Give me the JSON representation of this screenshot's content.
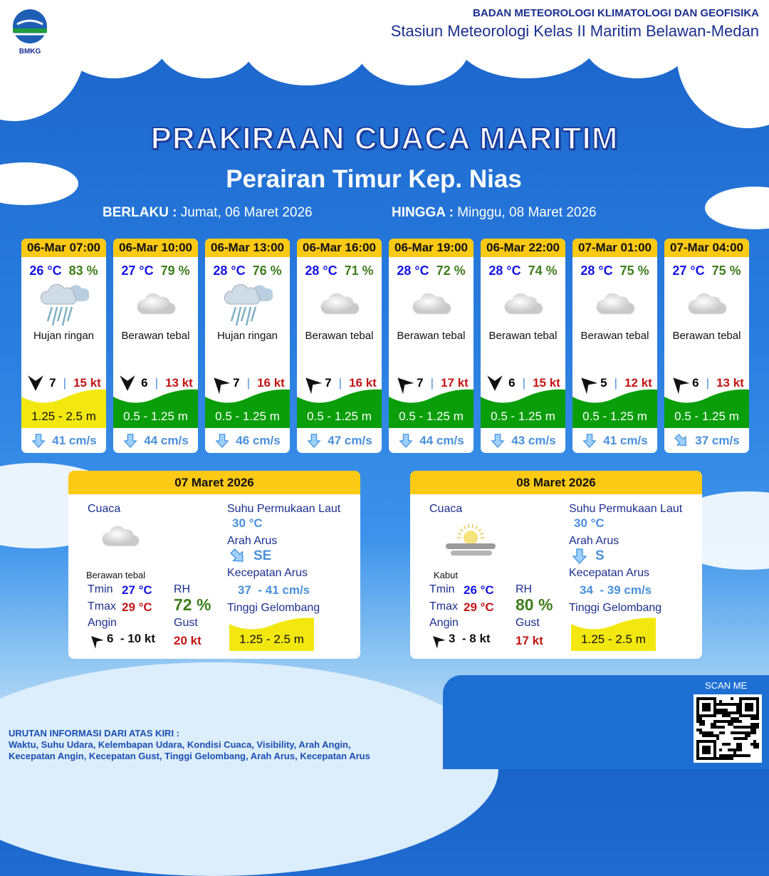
{
  "header": {
    "org": "BADAN METEOROLOGI KLIMATOLOGI DAN GEOFISIKA",
    "station": "Stasiun Meteorologi Kelas II Maritim Belawan-Medan",
    "logo_text": "BMKG"
  },
  "title": "PRAKIRAAN CUACA MARITIM",
  "subtitle": "Perairan Timur Kep. Nias",
  "validity": {
    "from_label": "BERLAKU :",
    "from": "Jumat, 06 Maret 2026",
    "to_label": "HINGGA :",
    "to": "Minggu, 08 Maret 2026"
  },
  "colors": {
    "yellow_wave": "#f2e80f",
    "green_wave": "#0a9e0a",
    "header": "#fcc914"
  },
  "forecasts": [
    {
      "time": "06-Mar 07:00",
      "temp": "26 °C",
      "rh": "83 %",
      "icon": "rain-cloud-icon",
      "cond": "Hujan ringan",
      "wind_dir": "N",
      "wind": "7",
      "gust": "15 kt",
      "wave": "1.25 - 2.5 m",
      "wave_level": "yellow",
      "cur_dir": "S",
      "cur": "41 cm/s"
    },
    {
      "time": "06-Mar 10:00",
      "temp": "27 °C",
      "rh": "79 %",
      "icon": "cloud-icon",
      "cond": "Berawan tebal",
      "wind_dir": "N",
      "wind": "6",
      "gust": "13 kt",
      "wave": "0.5 - 1.25 m",
      "wave_level": "green",
      "cur_dir": "S",
      "cur": "44 cm/s"
    },
    {
      "time": "06-Mar 13:00",
      "temp": "28 °C",
      "rh": "76 %",
      "icon": "rain-cloud-icon",
      "cond": "Hujan ringan",
      "wind_dir": "SW",
      "wind": "7",
      "gust": "16 kt",
      "wave": "0.5 - 1.25 m",
      "wave_level": "green",
      "cur_dir": "S",
      "cur": "46 cm/s"
    },
    {
      "time": "06-Mar 16:00",
      "temp": "28 °C",
      "rh": "71 %",
      "icon": "cloud-icon",
      "cond": "Berawan tebal",
      "wind_dir": "SW",
      "wind": "7",
      "gust": "16 kt",
      "wave": "0.5 - 1.25 m",
      "wave_level": "green",
      "cur_dir": "S",
      "cur": "47 cm/s"
    },
    {
      "time": "06-Mar 19:00",
      "temp": "28 °C",
      "rh": "72 %",
      "icon": "cloud-icon",
      "cond": "Berawan tebal",
      "wind_dir": "SW",
      "wind": "7",
      "gust": "17 kt",
      "wave": "0.5 - 1.25 m",
      "wave_level": "green",
      "cur_dir": "S",
      "cur": "44 cm/s"
    },
    {
      "time": "06-Mar 22:00",
      "temp": "28 °C",
      "rh": "74 %",
      "icon": "cloud-icon",
      "cond": "Berawan tebal",
      "wind_dir": "N",
      "wind": "6",
      "gust": "15 kt",
      "wave": "0.5 - 1.25 m",
      "wave_level": "green",
      "cur_dir": "S",
      "cur": "43 cm/s"
    },
    {
      "time": "07-Mar 01:00",
      "temp": "28 °C",
      "rh": "75 %",
      "icon": "cloud-icon",
      "cond": "Berawan tebal",
      "wind_dir": "SW",
      "wind": "5",
      "gust": "12 kt",
      "wave": "0.5 - 1.25 m",
      "wave_level": "green",
      "cur_dir": "S",
      "cur": "41 cm/s"
    },
    {
      "time": "07-Mar 04:00",
      "temp": "27 °C",
      "rh": "75 %",
      "icon": "cloud-icon",
      "cond": "Berawan tebal",
      "wind_dir": "SW",
      "wind": "6",
      "gust": "13 kt",
      "wave": "0.5 - 1.25 m",
      "wave_level": "green",
      "cur_dir": "SE",
      "cur": "37 cm/s"
    }
  ],
  "daily": [
    {
      "date": "07 Maret 2026",
      "cuaca_label": "Cuaca",
      "icon": "cloud-icon",
      "cond": "Berawan tebal",
      "tmin_label": "Tmin",
      "tmin": "27 °C",
      "tmax_label": "Tmax",
      "tmax": "29 °C",
      "rh_label": "RH",
      "rh": "72 %",
      "angin_label": "Angin",
      "angin": "6  - 10 kt",
      "gust_label": "Gust",
      "gust": "20 kt",
      "sst_label": "Suhu Permukaan Laut",
      "sst": "30 °C",
      "arah_label": "Arah Arus",
      "arah": "SE",
      "kec_label": "Kecepatan Arus",
      "kec": "37  - 41 cm/s",
      "tg_label": "Tinggi Gelombang",
      "tg": "1.25 - 2.5 m"
    },
    {
      "date": "08 Maret 2026",
      "cuaca_label": "Cuaca",
      "icon": "fog-icon",
      "cond": "Kabut",
      "tmin_label": "Tmin",
      "tmin": "26 °C",
      "tmax_label": "Tmax",
      "tmax": "29 °C",
      "rh_label": "RH",
      "rh": "80 %",
      "angin_label": "Angin",
      "angin": "3  - 8 kt",
      "gust_label": "Gust",
      "gust": "17 kt",
      "sst_label": "Suhu Permukaan Laut",
      "sst": "30 °C",
      "arah_label": "Arah Arus",
      "arah": "S",
      "kec_label": "Kecepatan Arus",
      "kec": "34  - 39 cm/s",
      "tg_label": "Tinggi Gelombang",
      "tg": "1.25 - 2.5 m"
    }
  ],
  "footer": {
    "line1": "URUTAN INFORMASI DARI ATAS KIRI :",
    "line2": "Waktu, Suhu Udara, Kelembapan Udara, Kondisi Cuaca, Visibility, Arah Angin,",
    "line3": "Kecepatan Angin, Kecepatan Gust, Tinggi Gelombang, Arah Arus, Kecepatan Arus"
  },
  "qr": {
    "label": "SCAN ME"
  }
}
